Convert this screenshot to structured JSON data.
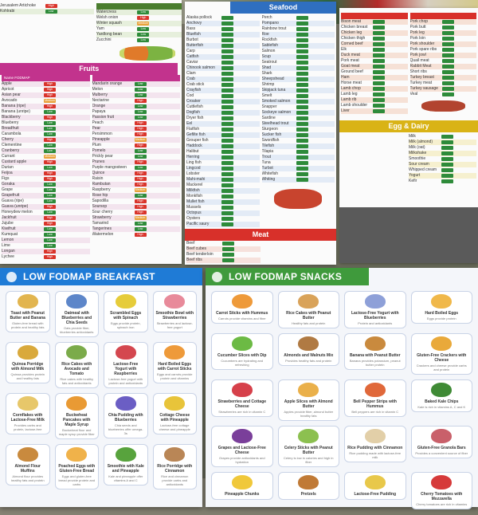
{
  "colors": {
    "low": "#2e8b3a",
    "medium": "#e9a23b",
    "high": "#d9342b",
    "fruits": "#c2338d",
    "seafood": "#2f6fc0",
    "meat": "#d8302a",
    "dairy": "#d9b316",
    "breakfast": "#1f7bd6",
    "snacks": "#3f9a3c"
  },
  "vegetables": {
    "rows": [
      {
        "name": "Watercress",
        "fodmap": "Low"
      },
      {
        "name": "Welsh onion",
        "fodmap": "High"
      },
      {
        "name": "Winter squash",
        "fodmap": "Medium"
      },
      {
        "name": "Yam",
        "fodmap": "Low"
      },
      {
        "name": "Yardlong bean",
        "fodmap": "Low"
      },
      {
        "name": "Zucchini",
        "fodmap": "Low"
      }
    ],
    "left_rows": [
      {
        "name": "Jerusalem Artichoke",
        "fodmap": "High"
      },
      {
        "name": "Kohlrabi",
        "fodmap": "Low"
      }
    ]
  },
  "fruits": {
    "title": "Fruits",
    "col_head": "Name   FODMAP",
    "left": [
      {
        "name": "Apple",
        "fodmap": "High"
      },
      {
        "name": "Apricot",
        "fodmap": "High"
      },
      {
        "name": "Asian pear",
        "fodmap": "High"
      },
      {
        "name": "Avocado",
        "fodmap": "Medium"
      },
      {
        "name": "Banana (ripe)",
        "fodmap": "High"
      },
      {
        "name": "Banana (unripe)",
        "fodmap": "Low"
      },
      {
        "name": "Blackberry",
        "fodmap": "High"
      },
      {
        "name": "Blueberry",
        "fodmap": "Low"
      },
      {
        "name": "Breadfruit",
        "fodmap": "Low"
      },
      {
        "name": "Carambola",
        "fodmap": "Low"
      },
      {
        "name": "Cherry",
        "fodmap": "High"
      },
      {
        "name": "Clementine",
        "fodmap": "Low"
      },
      {
        "name": "Cranberry",
        "fodmap": "Low"
      },
      {
        "name": "Currant",
        "fodmap": "Medium"
      },
      {
        "name": "Custard apple",
        "fodmap": "High"
      },
      {
        "name": "Durian",
        "fodmap": "Low"
      },
      {
        "name": "Feijoa",
        "fodmap": "High"
      },
      {
        "name": "Figs",
        "fodmap": "High"
      },
      {
        "name": "Goraka",
        "fodmap": "Low"
      },
      {
        "name": "Grape",
        "fodmap": "Low"
      },
      {
        "name": "Grapefruit",
        "fodmap": "Low"
      },
      {
        "name": "Guava (ripe)",
        "fodmap": "Low"
      },
      {
        "name": "Guava (unripe)",
        "fodmap": "High"
      },
      {
        "name": "Honeydew melon",
        "fodmap": "Low"
      },
      {
        "name": "Jackfruit",
        "fodmap": "High"
      },
      {
        "name": "Jujube",
        "fodmap": "High"
      },
      {
        "name": "Kiwifruit",
        "fodmap": "Low"
      },
      {
        "name": "Kumquat",
        "fodmap": "Low"
      },
      {
        "name": "Lemon",
        "fodmap": "Low"
      },
      {
        "name": "Lime",
        "fodmap": "Low"
      },
      {
        "name": "Longan",
        "fodmap": "High"
      },
      {
        "name": "Lychee",
        "fodmap": "High"
      }
    ],
    "right": [
      {
        "name": "Mandarin orange",
        "fodmap": "Low"
      },
      {
        "name": "Melon",
        "fodmap": "Low"
      },
      {
        "name": "Mulberry",
        "fodmap": "Low"
      },
      {
        "name": "Nectarine",
        "fodmap": "High"
      },
      {
        "name": "Orange",
        "fodmap": "Low"
      },
      {
        "name": "Papaya",
        "fodmap": "Low"
      },
      {
        "name": "Passion fruit",
        "fodmap": "Low"
      },
      {
        "name": "Peach",
        "fodmap": "High"
      },
      {
        "name": "Pear",
        "fodmap": "High"
      },
      {
        "name": "Persimmon",
        "fodmap": "High"
      },
      {
        "name": "Pineapple",
        "fodmap": "Medium"
      },
      {
        "name": "Plum",
        "fodmap": "High"
      },
      {
        "name": "Pomelo",
        "fodmap": "Low"
      },
      {
        "name": "Prickly pear",
        "fodmap": "Low"
      },
      {
        "name": "Prunes",
        "fodmap": "High"
      },
      {
        "name": "Purple mangosteen",
        "fodmap": "Low"
      },
      {
        "name": "Quince",
        "fodmap": "High"
      },
      {
        "name": "Raisin",
        "fodmap": "High"
      },
      {
        "name": "Rambutan",
        "fodmap": "High"
      },
      {
        "name": "Raspberry",
        "fodmap": "Medium"
      },
      {
        "name": "Rose hip",
        "fodmap": "Low"
      },
      {
        "name": "Sapodilla",
        "fodmap": "High"
      },
      {
        "name": "Soursop",
        "fodmap": "High"
      },
      {
        "name": "Sour cherry",
        "fodmap": "High"
      },
      {
        "name": "Strawberry",
        "fodmap": "Medium"
      },
      {
        "name": "Tamarind",
        "fodmap": "Low"
      },
      {
        "name": "Tangerines",
        "fodmap": "Low"
      },
      {
        "name": "Watermelon",
        "fodmap": "High"
      }
    ]
  },
  "seafood": {
    "title": "Seafood",
    "left": [
      "Alaska pollock",
      "Anchovy",
      "Bass",
      "Bluefish",
      "Burbot",
      "Butterfish",
      "Carp",
      "Catfish",
      "Caviar",
      "Chinook salmon",
      "Clam",
      "Crab",
      "Crab stick",
      "Crayfish",
      "Cod",
      "Croaker",
      "Cuttlefish",
      "Dogfish",
      "Dryer fish",
      "Eel",
      "Flatfish",
      "Gefilte fish",
      "Grouper fish",
      "Haddock",
      "Halibut",
      "Herring",
      "Ling fish",
      "Lingcod",
      "Lobster",
      "Mahi-mahi",
      "Mackerel",
      "Milkfish",
      "Monkfish",
      "Mullet fish",
      "Mussels",
      "Octopus",
      "Oysters",
      "Pacific saury"
    ],
    "right": [
      "Perch",
      "Pompano",
      "Rainbow trout",
      "Roe",
      "Rockfish",
      "Sablefish",
      "Salmon",
      "Scup",
      "Seatrout",
      "Shad",
      "Shark",
      "Sheepshead",
      "Shrimp",
      "Skipjack tuna",
      "Smelt",
      "Smoked salmon",
      "Snapper",
      "Sockeye salmon",
      "Sardine",
      "Steelhead trout",
      "Sturgeon",
      "Sucker fish",
      "Swordfish",
      "Tilefish",
      "Tilapia",
      "Trout",
      "Tuna",
      "Turbot",
      "Whitefish",
      "Whiting"
    ]
  },
  "meat_footer": {
    "title": "Meat",
    "rows": [
      "Beef",
      "Beef cubes",
      "Beef tenderloin",
      "Beef ribs"
    ]
  },
  "meat": {
    "left": [
      "Bison meat",
      "Chicken breast",
      "Chicken leg",
      "Chicken thigh",
      "Corned beef",
      "Elk",
      "Duck meat",
      "Pork meat",
      "Goat meat",
      "Ground beef",
      "Ham",
      "Horse meat",
      "Lamb chop",
      "Lamb leg",
      "Lamb rib",
      "Lamb shoulder",
      "Liver"
    ],
    "right": [
      "Pork chop",
      "Pork butt",
      "Pork leg",
      "Pork loin",
      "Pork shoulder",
      "Pork spare ribs",
      "Pork jowl",
      "Quail meat",
      "Rabbit Meat",
      "Short ribs",
      "Turkey breast",
      "Turkey meat",
      "Turkey sausage",
      "Veal"
    ]
  },
  "dairy": {
    "title": "Egg & Dairy",
    "rows": [
      "Milk",
      "Milk (almond)",
      "Milk (oat)",
      "Milkshake",
      "Smoothie",
      "Sour cream",
      "Whipped cream",
      "Yogurt",
      "Kefir"
    ]
  },
  "breakfast": {
    "title": "LOW FODMAP BREAKFAST",
    "cards": [
      {
        "title": "Toast with Peanut Butter and Banana",
        "desc": "Gluten-free bread with protein and healthy fats",
        "color": "#e2b54f"
      },
      {
        "title": "Oatmeal with Blueberries and Chia Seeds",
        "desc": "Oats provide fiber, blueberries antioxidants",
        "color": "#5d86c9"
      },
      {
        "title": "Scrambled Eggs with Spinach",
        "desc": "Eggs provide protein, spinach iron",
        "color": "#e6cc3a"
      },
      {
        "title": "Smoothie Bowl with Strawberries",
        "desc": "Strawberries and lactose-free yogurt",
        "color": "#e88a9a"
      },
      {
        "title": "Quinoa Porridge with Almond Milk",
        "desc": "Quinoa provides protein and healthy fats",
        "color": "#d9a93c"
      },
      {
        "title": "Rice Cakes with Avocado and Tomato",
        "desc": "Rice cakes with healthy fats and antioxidants",
        "color": "#7bab4a"
      },
      {
        "title": "Lactose-Free Yogurt with Raspberries",
        "desc": "Lactose-free yogurt with protein and antioxidants",
        "color": "#d4474f"
      },
      {
        "title": "Hard Boiled Eggs with Carrot Sticks",
        "desc": "Eggs and carrots provide protein and vitamins",
        "color": "#ee9a3a"
      },
      {
        "title": "Cornflakes with Lactose-Free Milk",
        "desc": "Provides carbs and protein, lactose-free",
        "color": "#e7c76a"
      },
      {
        "title": "Buckwheat Pancakes with Maple Syrup",
        "desc": "Buckwheat flour and maple syrup provide fiber",
        "color": "#e99a34"
      },
      {
        "title": "Chia Pudding with Blueberries",
        "desc": "Chia seeds and blueberries offer omega-3s",
        "color": "#6b5ec4"
      },
      {
        "title": "Cottage Cheese with Pineapple",
        "desc": "Lactose-free cottage cheese and pineapple",
        "color": "#e8c43a"
      },
      {
        "title": "Almond Flour Muffins",
        "desc": "Almond flour provides healthy fats and protein",
        "color": "#c98a3e"
      },
      {
        "title": "Poached Eggs with Gluten-Free Bread",
        "desc": "Eggs and gluten-free bread provide protein and carbs",
        "color": "#f0b24a"
      },
      {
        "title": "Smoothie with Kale and Pineapple",
        "desc": "Kale and pineapple offer vitamins A and C",
        "color": "#58a33d"
      },
      {
        "title": "Rice Porridge with Cinnamon",
        "desc": "Rice and cinnamon provide carbs and antioxidants",
        "color": "#b98656"
      }
    ]
  },
  "snacks": {
    "title": "LOW FODMAP SNACKS",
    "cards": [
      {
        "title": "Carrot Sticks with Hummus",
        "desc": "Carrots provide vitamins and fiber",
        "color": "#ee9a3a"
      },
      {
        "title": "Rice Cakes with Peanut Butter",
        "desc": "Healthy fats and protein",
        "color": "#d9a35a"
      },
      {
        "title": "Lactose-Free Yogurt with Blueberries",
        "desc": "Protein and antioxidants",
        "color": "#8ea0d8"
      },
      {
        "title": "Hard Boiled Eggs",
        "desc": "Eggs provide protein",
        "color": "#f0b84a"
      },
      {
        "title": "Cucumber Slices with Dip",
        "desc": "Cucumbers are hydrating and refreshing",
        "color": "#6cba44"
      },
      {
        "title": "Almonds and Walnuts Mix",
        "desc": "Provides healthy fats and protein",
        "color": "#b07a43"
      },
      {
        "title": "Banana with Peanut Butter",
        "desc": "Banana provides potassium, peanut butter protein",
        "color": "#c98a3e"
      },
      {
        "title": "Gluten-Free Crackers with Cheese",
        "desc": "Crackers and cheese provide carbs and protein",
        "color": "#e9a93a"
      },
      {
        "title": "Strawberries and Cottage Cheese",
        "desc": "Strawberries are rich in vitamin C",
        "color": "#d6404a"
      },
      {
        "title": "Apple Slices with Almond Butter",
        "desc": "Apples provide fiber, almond butter healthy fats",
        "color": "#eab04a"
      },
      {
        "title": "Bell Pepper Strips with Hummus",
        "desc": "Bell peppers are rich in vitamin C",
        "color": "#e0683a"
      },
      {
        "title": "Baked Kale Chips",
        "desc": "Kale is rich in vitamins A, C and K",
        "color": "#3f8a35"
      },
      {
        "title": "Grapes and Lactose-Free Cheese",
        "desc": "Grapes provide antioxidants and hydration",
        "color": "#7a3f9a"
      },
      {
        "title": "Celery Sticks with Peanut Butter",
        "desc": "Celery is low in calories and high in fiber",
        "color": "#8cc050"
      },
      {
        "title": "Rice Pudding with Cinnamon",
        "desc": "Rice pudding made with lactose-free milk",
        "color": "#e2cfa8"
      },
      {
        "title": "Gluten-Free Granola Bars",
        "desc": "Provides a convenient source of fiber",
        "color": "#c9606a"
      },
      {
        "title": "Pineapple Chunks",
        "desc": "",
        "color": "#f0c83a"
      },
      {
        "title": "Pretzels",
        "desc": "",
        "color": "#c07a36"
      },
      {
        "title": "Lactose-Free Pudding",
        "desc": "",
        "color": "#e8c84a"
      },
      {
        "title": "Cherry Tomatoes with Mozzarella",
        "desc": "Cherry tomatoes are rich in vitamins",
        "color": "#d63a3a"
      }
    ]
  }
}
